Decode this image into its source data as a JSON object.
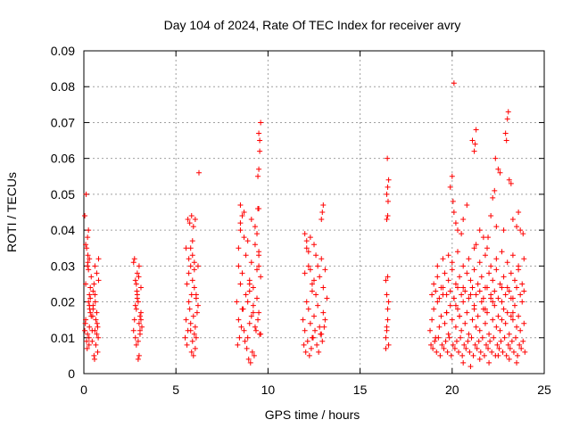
{
  "chart_data": {
    "type": "scatter",
    "title": "Day 104 of 2024, Rate Of TEC Index for receiver avry",
    "xlabel": "GPS time / hours",
    "ylabel": "ROTI / TECUs",
    "xlim": [
      0,
      25
    ],
    "ylim": [
      0,
      0.09
    ],
    "xticks": [
      0,
      5,
      10,
      15,
      20,
      25
    ],
    "xtick_labels": [
      "0",
      "5",
      "10",
      "15",
      "20",
      "25"
    ],
    "yticks": [
      0,
      0.01,
      0.02,
      0.03,
      0.04,
      0.05,
      0.06,
      0.07,
      0.08,
      0.09
    ],
    "ytick_labels": [
      "0",
      "0.01",
      "0.02",
      "0.03",
      "0.04",
      "0.05",
      "0.06",
      "0.07",
      "0.08",
      "0.09"
    ],
    "grid": true,
    "marker": "+",
    "color": "#ff0000",
    "series": [
      {
        "name": "ROTI",
        "x": [
          0.05,
          0.1,
          0.15,
          0.2,
          0.25,
          0.3,
          0.35,
          0.1,
          0.2,
          0.3,
          0.15,
          0.25,
          0.05,
          0.12,
          0.22,
          0.32,
          0.18,
          0.28,
          0.08,
          0.4,
          0.45,
          0.5,
          0.55,
          0.6,
          0.65,
          0.7,
          0.75,
          0.8,
          0.5,
          0.6,
          0.7,
          0.45,
          0.55,
          0.65,
          0.75,
          0.35,
          0.4,
          0.25,
          0.3,
          0.6,
          0.7,
          0.5,
          0.8,
          0.1,
          0.2,
          0.3,
          0.35,
          0.22,
          0.28,
          0.58,
          0.62,
          0.72,
          0.48,
          0.78,
          2.7,
          2.75,
          2.8,
          2.85,
          2.9,
          2.95,
          3.0,
          3.05,
          3.1,
          3.15,
          2.8,
          2.9,
          3.0,
          3.1,
          2.85,
          2.95,
          3.05,
          2.75,
          2.7,
          2.8,
          2.9,
          2.95,
          3.0,
          2.85,
          3.05,
          3.1,
          2.88,
          2.98,
          5.5,
          5.55,
          5.6,
          5.65,
          5.7,
          5.75,
          5.8,
          5.85,
          5.9,
          5.95,
          6.0,
          6.05,
          6.1,
          6.15,
          6.2,
          5.6,
          5.7,
          5.8,
          5.9,
          6.0,
          6.1,
          5.65,
          5.75,
          5.85,
          5.95,
          6.05,
          5.8,
          5.9,
          6.0,
          5.85,
          5.95,
          6.05,
          5.9,
          6.0,
          6.1,
          6.2,
          6.25,
          5.55,
          5.7,
          5.8,
          8.3,
          8.4,
          8.5,
          8.6,
          8.7,
          8.8,
          8.9,
          9.0,
          9.1,
          9.2,
          9.3,
          9.4,
          9.5,
          9.6,
          8.4,
          8.6,
          8.8,
          9.0,
          9.2,
          9.4,
          8.5,
          8.7,
          8.9,
          9.1,
          9.3,
          9.5,
          8.35,
          8.45,
          8.55,
          8.65,
          8.75,
          8.85,
          8.95,
          9.05,
          9.15,
          9.25,
          9.35,
          9.45,
          9.55,
          8.5,
          8.6,
          8.7,
          8.4,
          8.5,
          9.3,
          9.4,
          9.5,
          9.45,
          9.5,
          9.55,
          9.5,
          9.6,
          9.45,
          9.55,
          9.5,
          9.5,
          9.6,
          8.9,
          9.0,
          9.1,
          9.2,
          9.0,
          11.9,
          12.0,
          12.1,
          12.2,
          12.3,
          12.4,
          12.5,
          12.6,
          12.7,
          12.8,
          12.9,
          13.0,
          13.1,
          13.2,
          12.0,
          12.2,
          12.4,
          12.6,
          12.8,
          13.0,
          12.1,
          12.3,
          12.5,
          12.7,
          12.9,
          13.1,
          11.95,
          12.05,
          12.15,
          12.25,
          12.35,
          12.45,
          12.55,
          12.65,
          12.75,
          12.85,
          12.95,
          13.05,
          12.0,
          12.1,
          12.2,
          12.3,
          12.9,
          13.0,
          12.95,
          12.5,
          12.4,
          16.4,
          16.45,
          16.5,
          16.55,
          16.4,
          16.5,
          16.45,
          16.55,
          16.4,
          16.5,
          16.45,
          16.5,
          16.45,
          16.5,
          16.55,
          16.48,
          16.52,
          16.45,
          18.8,
          18.9,
          19.0,
          19.1,
          19.2,
          19.3,
          19.4,
          19.5,
          19.6,
          19.7,
          19.8,
          19.9,
          20.0,
          20.1,
          20.2,
          20.3,
          20.4,
          20.5,
          20.6,
          20.7,
          20.8,
          20.9,
          21.0,
          21.1,
          21.2,
          21.3,
          21.4,
          21.5,
          21.6,
          21.7,
          21.8,
          21.9,
          22.0,
          22.1,
          22.2,
          22.3,
          22.4,
          22.5,
          22.6,
          22.7,
          22.8,
          22.9,
          23.0,
          23.1,
          23.2,
          23.3,
          23.4,
          23.5,
          23.6,
          23.7,
          23.8,
          23.9,
          18.85,
          18.95,
          19.05,
          19.15,
          19.25,
          19.35,
          19.45,
          19.55,
          19.65,
          19.75,
          19.85,
          19.95,
          20.05,
          20.15,
          20.25,
          20.35,
          20.45,
          20.55,
          20.65,
          20.75,
          20.85,
          20.95,
          21.05,
          21.15,
          21.25,
          21.35,
          21.45,
          21.55,
          21.65,
          21.75,
          21.85,
          21.95,
          22.05,
          22.15,
          22.25,
          22.35,
          22.45,
          22.55,
          22.65,
          22.75,
          22.85,
          22.95,
          23.05,
          23.15,
          23.25,
          23.35,
          23.45,
          23.55,
          23.65,
          23.75,
          23.85,
          23.95,
          19.0,
          19.2,
          19.4,
          19.6,
          19.8,
          20.0,
          20.2,
          20.4,
          20.6,
          20.8,
          21.0,
          21.2,
          21.4,
          21.6,
          21.8,
          22.0,
          22.2,
          22.4,
          22.6,
          22.8,
          23.0,
          23.2,
          23.4,
          23.6,
          23.8,
          18.9,
          19.1,
          19.3,
          19.5,
          19.7,
          19.9,
          20.1,
          20.3,
          20.5,
          20.7,
          20.9,
          21.1,
          21.3,
          21.5,
          21.7,
          21.9,
          22.1,
          22.3,
          22.5,
          22.7,
          22.9,
          23.1,
          23.3,
          23.5,
          23.7,
          23.9,
          19.2,
          19.5,
          19.8,
          20.0,
          20.3,
          20.6,
          20.9,
          21.2,
          21.5,
          21.8,
          22.1,
          22.4,
          22.7,
          23.0,
          23.3,
          23.6,
          23.9,
          19.9,
          20.0,
          20.05,
          20.1,
          20.2,
          20.3,
          20.5,
          20.6,
          20.8,
          21.1,
          21.3,
          21.2,
          21.25,
          21.3,
          21.5,
          21.7,
          21.9,
          21.95,
          22.1,
          22.2,
          22.3,
          22.35,
          22.4,
          22.5,
          22.6,
          22.8,
          22.9,
          22.95,
          23.0,
          23.05,
          23.1,
          23.2,
          23.3,
          23.5,
          23.6,
          23.7,
          23.85,
          20.1,
          20.6,
          21.0,
          21.5,
          22.0,
          22.5,
          23.1,
          23.5,
          19.7,
          20.4,
          21.8,
          22.7,
          23.3,
          20.2,
          21.2,
          22.2,
          23.2
        ],
        "y": [
          0.012,
          0.015,
          0.009,
          0.011,
          0.02,
          0.013,
          0.017,
          0.025,
          0.03,
          0.022,
          0.035,
          0.04,
          0.044,
          0.05,
          0.033,
          0.018,
          0.007,
          0.01,
          0.014,
          0.016,
          0.012,
          0.019,
          0.025,
          0.03,
          0.008,
          0.011,
          0.006,
          0.032,
          0.018,
          0.022,
          0.028,
          0.009,
          0.005,
          0.015,
          0.013,
          0.021,
          0.027,
          0.029,
          0.032,
          0.012,
          0.017,
          0.023,
          0.026,
          0.036,
          0.038,
          0.019,
          0.024,
          0.031,
          0.008,
          0.004,
          0.02,
          0.014,
          0.016,
          0.01,
          0.012,
          0.015,
          0.01,
          0.018,
          0.022,
          0.02,
          0.014,
          0.011,
          0.017,
          0.013,
          0.026,
          0.028,
          0.03,
          0.024,
          0.008,
          0.009,
          0.016,
          0.032,
          0.031,
          0.019,
          0.021,
          0.004,
          0.005,
          0.025,
          0.012,
          0.015,
          0.023,
          0.027,
          0.01,
          0.015,
          0.008,
          0.012,
          0.02,
          0.018,
          0.014,
          0.022,
          0.009,
          0.016,
          0.011,
          0.013,
          0.01,
          0.017,
          0.019,
          0.025,
          0.028,
          0.03,
          0.033,
          0.024,
          0.021,
          0.043,
          0.042,
          0.044,
          0.041,
          0.043,
          0.035,
          0.037,
          0.031,
          0.006,
          0.005,
          0.007,
          0.026,
          0.029,
          0.022,
          0.03,
          0.056,
          0.035,
          0.032,
          0.012,
          0.02,
          0.015,
          0.025,
          0.018,
          0.012,
          0.022,
          0.01,
          0.014,
          0.016,
          0.019,
          0.013,
          0.021,
          0.017,
          0.011,
          0.03,
          0.028,
          0.033,
          0.026,
          0.024,
          0.029,
          0.04,
          0.045,
          0.037,
          0.043,
          0.036,
          0.034,
          0.008,
          0.01,
          0.013,
          0.018,
          0.009,
          0.007,
          0.004,
          0.003,
          0.006,
          0.005,
          0.012,
          0.015,
          0.011,
          0.047,
          0.044,
          0.038,
          0.035,
          0.042,
          0.041,
          0.039,
          0.046,
          0.055,
          0.057,
          0.065,
          0.067,
          0.07,
          0.046,
          0.062,
          0.033,
          0.03,
          0.027,
          0.02,
          0.023,
          0.031,
          0.017,
          0.025,
          0.015,
          0.012,
          0.02,
          0.018,
          0.014,
          0.01,
          0.016,
          0.022,
          0.019,
          0.013,
          0.011,
          0.017,
          0.015,
          0.021,
          0.028,
          0.03,
          0.025,
          0.033,
          0.027,
          0.024,
          0.035,
          0.038,
          0.036,
          0.03,
          0.032,
          0.029,
          0.008,
          0.006,
          0.009,
          0.005,
          0.007,
          0.01,
          0.012,
          0.008,
          0.006,
          0.011,
          0.009,
          0.013,
          0.039,
          0.037,
          0.034,
          0.029,
          0.043,
          0.047,
          0.045,
          0.026,
          0.023,
          0.01,
          0.012,
          0.015,
          0.008,
          0.007,
          0.018,
          0.022,
          0.02,
          0.026,
          0.027,
          0.043,
          0.044,
          0.05,
          0.052,
          0.054,
          0.06,
          0.048,
          0.013,
          0.012,
          0.015,
          0.018,
          0.01,
          0.02,
          0.013,
          0.016,
          0.022,
          0.014,
          0.017,
          0.011,
          0.019,
          0.015,
          0.021,
          0.013,
          0.018,
          0.016,
          0.012,
          0.02,
          0.014,
          0.017,
          0.011,
          0.022,
          0.015,
          0.019,
          0.013,
          0.016,
          0.012,
          0.02,
          0.018,
          0.014,
          0.017,
          0.011,
          0.021,
          0.015,
          0.019,
          0.013,
          0.016,
          0.012,
          0.02,
          0.018,
          0.014,
          0.017,
          0.011,
          0.021,
          0.015,
          0.019,
          0.013,
          0.016,
          0.012,
          0.02,
          0.014,
          0.008,
          0.007,
          0.009,
          0.006,
          0.01,
          0.005,
          0.008,
          0.007,
          0.009,
          0.006,
          0.01,
          0.005,
          0.008,
          0.007,
          0.009,
          0.006,
          0.01,
          0.005,
          0.008,
          0.007,
          0.009,
          0.006,
          0.01,
          0.005,
          0.008,
          0.007,
          0.009,
          0.006,
          0.01,
          0.005,
          0.008,
          0.007,
          0.009,
          0.006,
          0.01,
          0.005,
          0.008,
          0.007,
          0.009,
          0.006,
          0.01,
          0.005,
          0.008,
          0.007,
          0.009,
          0.006,
          0.01,
          0.005,
          0.008,
          0.007,
          0.009,
          0.006,
          0.025,
          0.027,
          0.024,
          0.028,
          0.026,
          0.029,
          0.025,
          0.027,
          0.024,
          0.028,
          0.026,
          0.029,
          0.025,
          0.027,
          0.024,
          0.028,
          0.026,
          0.029,
          0.025,
          0.027,
          0.024,
          0.028,
          0.026,
          0.029,
          0.025,
          0.022,
          0.023,
          0.021,
          0.024,
          0.022,
          0.023,
          0.021,
          0.024,
          0.022,
          0.023,
          0.021,
          0.024,
          0.022,
          0.023,
          0.021,
          0.024,
          0.022,
          0.023,
          0.021,
          0.024,
          0.022,
          0.023,
          0.021,
          0.024,
          0.022,
          0.023,
          0.03,
          0.032,
          0.033,
          0.031,
          0.034,
          0.03,
          0.032,
          0.035,
          0.031,
          0.033,
          0.03,
          0.032,
          0.034,
          0.031,
          0.033,
          0.03,
          0.032,
          0.052,
          0.055,
          0.048,
          0.045,
          0.042,
          0.04,
          0.039,
          0.043,
          0.047,
          0.065,
          0.068,
          0.062,
          0.064,
          0.036,
          0.04,
          0.038,
          0.035,
          0.038,
          0.044,
          0.049,
          0.051,
          0.06,
          0.041,
          0.057,
          0.056,
          0.04,
          0.067,
          0.065,
          0.071,
          0.073,
          0.054,
          0.053,
          0.043,
          0.041,
          0.045,
          0.04,
          0.039,
          0.081,
          0.003,
          0.002,
          0.004,
          0.003,
          0.005,
          0.004,
          0.003,
          0.017,
          0.016,
          0.018,
          0.015,
          0.017,
          0.019,
          0.018,
          0.02,
          0.016
        ]
      }
    ]
  }
}
